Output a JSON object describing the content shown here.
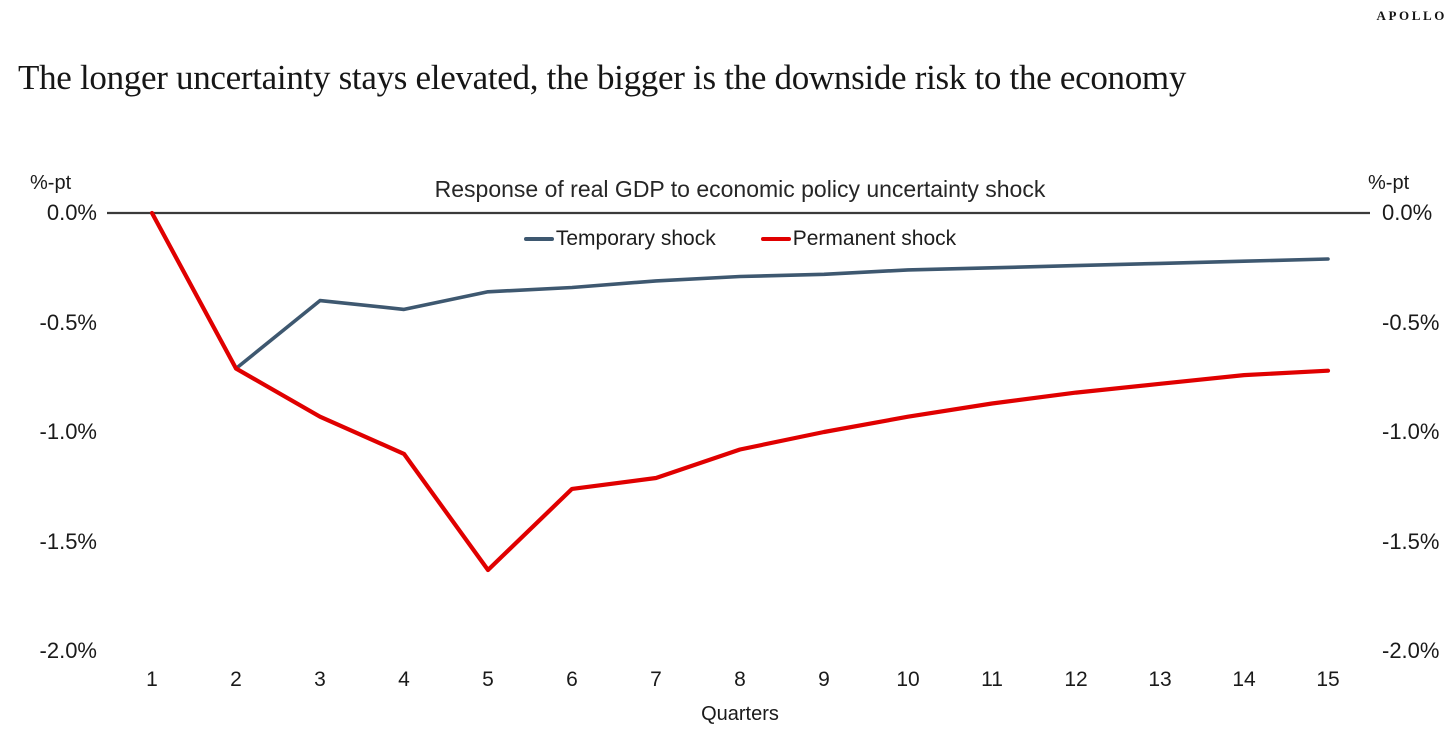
{
  "logo": "APOLLO",
  "page_title": "The longer uncertainty stays elevated, the bigger is the downside risk to the economy",
  "chart_data": {
    "type": "line",
    "title": "Response of real GDP to economic policy uncertainty shock",
    "y_axis_label_left": "%-pt",
    "y_axis_label_right": "%-pt",
    "xlabel": "Quarters",
    "x": [
      "1",
      "2",
      "3",
      "4",
      "5",
      "6",
      "7",
      "8",
      "9",
      "10",
      "11",
      "12",
      "13",
      "14",
      "15"
    ],
    "series": [
      {
        "name": "Temporary shock",
        "color": "#3E5870",
        "values": [
          0.0,
          -0.71,
          -0.4,
          -0.44,
          -0.36,
          -0.34,
          -0.31,
          -0.29,
          -0.28,
          -0.26,
          -0.25,
          -0.24,
          -0.23,
          -0.22,
          -0.21
        ]
      },
      {
        "name": "Permanent shock",
        "color": "#E00000",
        "values": [
          0.0,
          -0.71,
          -0.93,
          -1.1,
          -1.63,
          -1.26,
          -1.21,
          -1.08,
          -1.0,
          -0.93,
          -0.87,
          -0.82,
          -0.78,
          -0.74,
          -0.72
        ]
      }
    ],
    "y_ticks": [
      {
        "label": "0.0%",
        "value": 0.0
      },
      {
        "label": "-0.5%",
        "value": -0.5
      },
      {
        "label": "-1.0%",
        "value": -1.0
      },
      {
        "label": "-1.5%",
        "value": -1.5
      },
      {
        "label": "-2.0%",
        "value": -2.0
      }
    ],
    "ylim": [
      -2.0,
      0.0
    ],
    "axis_color": "#3A3A3A",
    "grid": false,
    "legend_position": "top-center"
  }
}
